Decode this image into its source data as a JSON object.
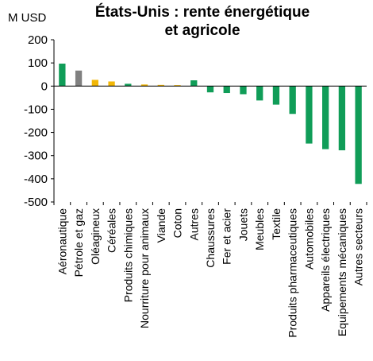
{
  "chart_data": {
    "type": "bar",
    "title_line1": "États-Unis : rente énergétique",
    "title_line2": "et agricole",
    "ylabel": "M USD",
    "ylim": [
      -500,
      200
    ],
    "yticks": [
      200,
      100,
      0,
      -100,
      -200,
      -300,
      -400,
      -500
    ],
    "grid": false,
    "colors": {
      "green": "#109d58",
      "gray": "#808080",
      "yellow": "#f2b707"
    },
    "categories": [
      "Aéronautique",
      "Pétrole et gaz",
      "Oléagineux",
      "Céréales",
      "Produits chimiques",
      "Nourriture pour animaux",
      "Viande",
      "Coton",
      "Autres",
      "Chaussures",
      "Fer et acier",
      "Jouets",
      "Meubles",
      "Textile",
      "Produits pharmaceutiques",
      "Automobiles",
      "Appareils électriques",
      "Equipements mécaniques",
      "Autres secteurs"
    ],
    "values": [
      97,
      67,
      27,
      20,
      10,
      7,
      5,
      4,
      25,
      -27,
      -30,
      -35,
      -62,
      -80,
      -120,
      -248,
      -272,
      -277,
      -422
    ],
    "bar_colors": [
      "green",
      "gray",
      "yellow",
      "yellow",
      "green",
      "yellow",
      "yellow",
      "yellow",
      "green",
      "green",
      "green",
      "green",
      "green",
      "green",
      "green",
      "green",
      "green",
      "green",
      "green"
    ]
  }
}
